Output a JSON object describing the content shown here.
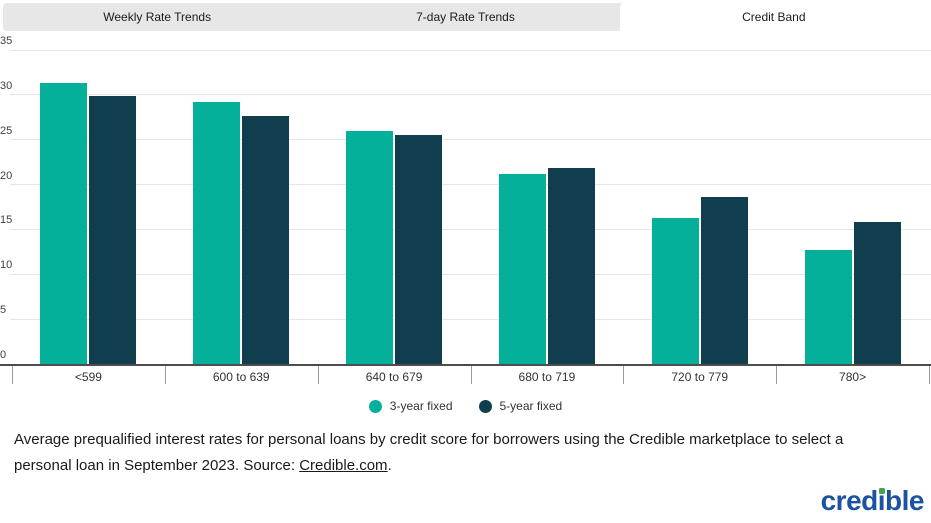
{
  "tabs": [
    {
      "label": "Weekly Rate Trends",
      "active": false
    },
    {
      "label": "7-day Rate Trends",
      "active": false
    },
    {
      "label": "Credit Band",
      "active": true
    }
  ],
  "chart_data": {
    "type": "bar",
    "categories": [
      "<599",
      "600 to 639",
      "640 to 679",
      "680 to 719",
      "720 to 779",
      "780>"
    ],
    "series": [
      {
        "name": "3-year fixed",
        "color": "#05b09a",
        "values": [
          31.3,
          29.2,
          26.0,
          21.2,
          16.3,
          12.7
        ]
      },
      {
        "name": "5-year fixed",
        "color": "#113e4f",
        "values": [
          29.9,
          27.6,
          25.5,
          21.8,
          18.6,
          15.8
        ]
      }
    ],
    "ylim": [
      0,
      35
    ],
    "yticks": [
      0,
      5,
      10,
      15,
      20,
      25,
      30,
      35
    ],
    "xlabel": "",
    "ylabel": "",
    "title": "",
    "grid": true,
    "legend_position": "bottom"
  },
  "caption": {
    "text": "Average prequalified interest rates for personal loans by credit score for borrowers using the Credible marketplace to select a personal loan in September 2023. Source: ",
    "link": "Credible.com",
    "end": "."
  },
  "logo": {
    "t1": "cred",
    "t2": "i",
    "t3": "ble"
  }
}
